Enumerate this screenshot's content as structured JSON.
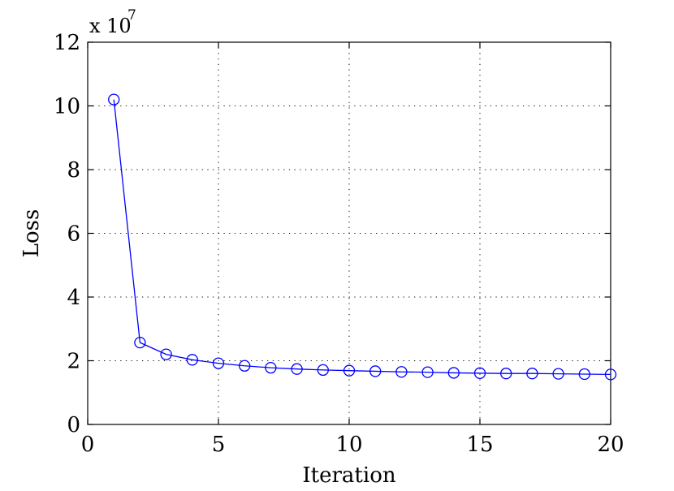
{
  "chart_data": {
    "type": "line",
    "xlabel": "Iteration",
    "ylabel": "Loss",
    "y_multiplier": {
      "base": "x 10",
      "exponent": "7"
    },
    "xlim": [
      0,
      20
    ],
    "ylim": [
      0,
      12
    ],
    "x_ticks": [
      0,
      5,
      10,
      15,
      20
    ],
    "y_ticks": [
      0,
      2,
      4,
      6,
      8,
      10,
      12
    ],
    "x_tick_labels": [
      "0",
      "5",
      "10",
      "15",
      "20"
    ],
    "y_tick_labels": [
      "0",
      "2",
      "4",
      "6",
      "8",
      "10",
      "12"
    ],
    "grid": true,
    "grid_style": "dotted",
    "line_color": "#0000ff",
    "marker": "circle-open",
    "series": [
      {
        "x": [
          1,
          2,
          3,
          4,
          5,
          6,
          7,
          8,
          9,
          10,
          11,
          12,
          13,
          14,
          15,
          16,
          17,
          18,
          19,
          20
        ],
        "values": [
          10.2,
          2.57,
          2.2,
          2.03,
          1.92,
          1.84,
          1.78,
          1.74,
          1.71,
          1.69,
          1.67,
          1.65,
          1.64,
          1.62,
          1.61,
          1.6,
          1.6,
          1.59,
          1.58,
          1.57
        ]
      }
    ]
  }
}
